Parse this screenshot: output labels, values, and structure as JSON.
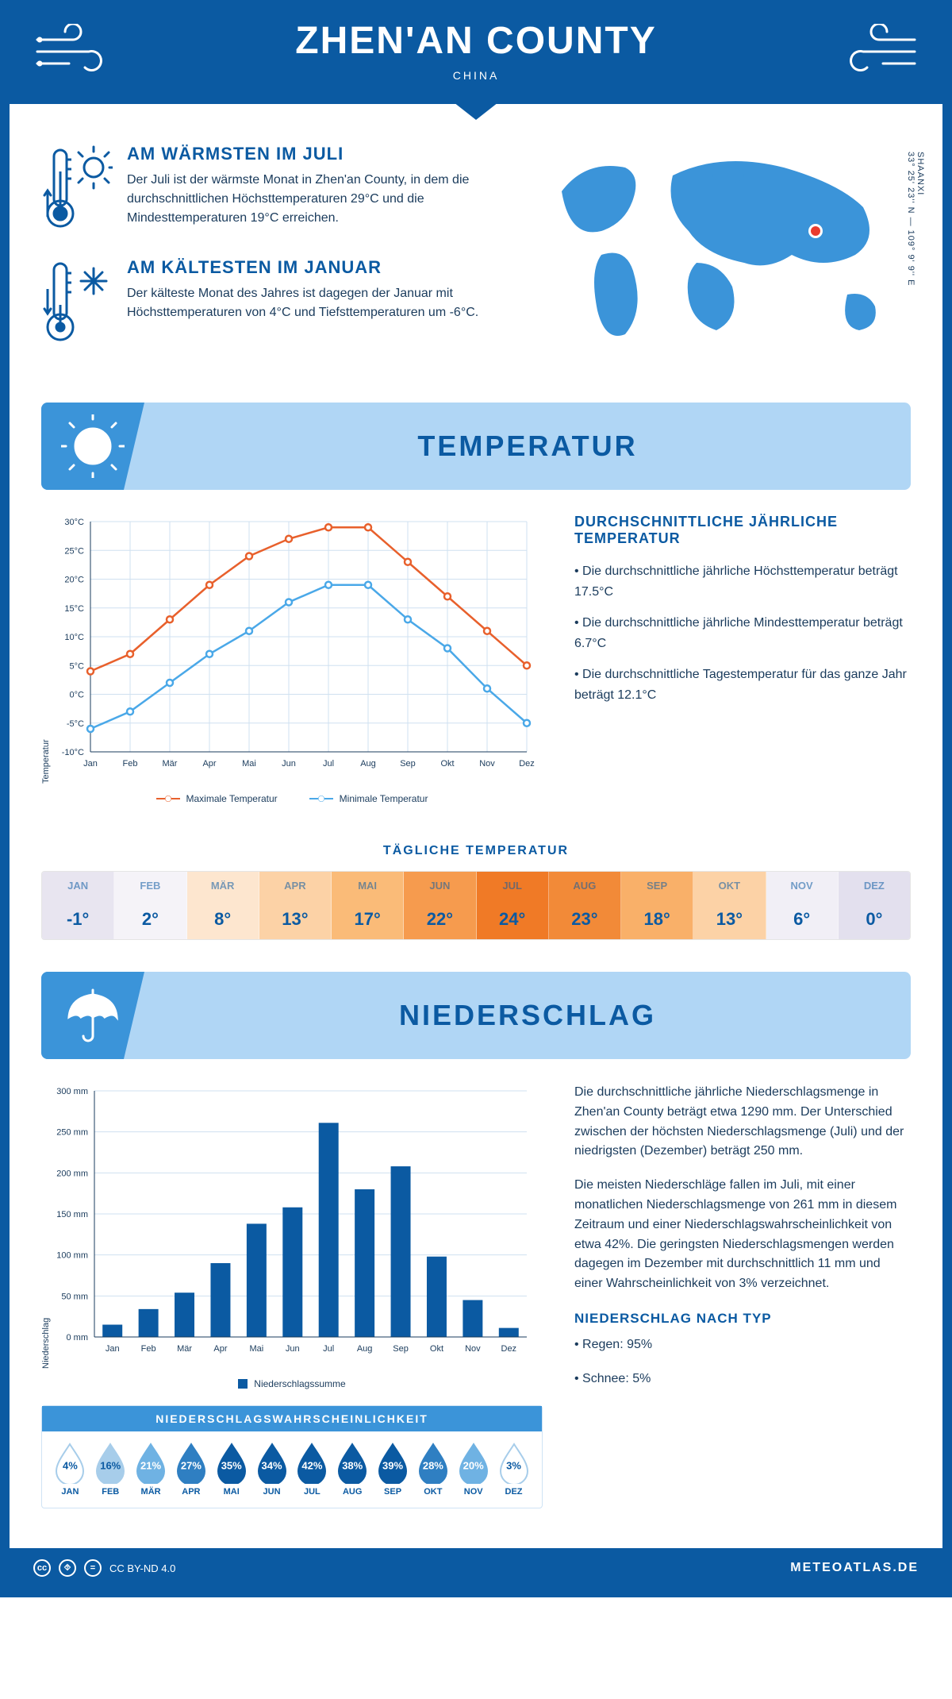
{
  "header": {
    "title": "ZHEN'AN COUNTY",
    "subtitle": "CHINA"
  },
  "coords": "33° 25' 23'' N — 109° 9' 9'' E",
  "region_label": "SHAANXI",
  "warm": {
    "title": "AM WÄRMSTEN IM JULI",
    "text": "Der Juli ist der wärmste Monat in Zhen'an County, in dem die durchschnittlichen Höchsttemperaturen 29°C und die Mindesttemperaturen 19°C erreichen."
  },
  "cold": {
    "title": "AM KÄLTESTEN IM JANUAR",
    "text": "Der kälteste Monat des Jahres ist dagegen der Januar mit Höchsttemperaturen von 4°C und Tiefsttemperaturen um -6°C."
  },
  "sections": {
    "temperature": "TEMPERATUR",
    "precipitation": "NIEDERSCHLAG"
  },
  "months": [
    "Jan",
    "Feb",
    "Mär",
    "Apr",
    "Mai",
    "Jun",
    "Jul",
    "Aug",
    "Sep",
    "Okt",
    "Nov",
    "Dez"
  ],
  "months_upper": [
    "JAN",
    "FEB",
    "MÄR",
    "APR",
    "MAI",
    "JUN",
    "JUL",
    "AUG",
    "SEP",
    "OKT",
    "NOV",
    "DEZ"
  ],
  "temp_chart": {
    "ylabel": "Temperatur",
    "y_min": -10,
    "y_max": 30,
    "y_step": 5,
    "max_series": {
      "label": "Maximale Temperatur",
      "color": "#e8602c",
      "values": [
        4,
        7,
        13,
        19,
        24,
        27,
        29,
        29,
        23,
        17,
        11,
        5
      ]
    },
    "min_series": {
      "label": "Minimale Temperatur",
      "color": "#4aa8e8",
      "values": [
        -6,
        -3,
        2,
        7,
        11,
        16,
        19,
        19,
        13,
        8,
        1,
        -5
      ]
    },
    "grid_color": "#cfe0f0",
    "axis_color": "#1a3b5c"
  },
  "temp_text": {
    "heading": "DURCHSCHNITTLICHE JÄHRLICHE TEMPERATUR",
    "bullets": [
      "• Die durchschnittliche jährliche Höchsttemperatur beträgt 17.5°C",
      "• Die durchschnittliche jährliche Mindesttemperatur beträgt 6.7°C",
      "• Die durchschnittliche Tagestemperatur für das ganze Jahr beträgt 12.1°C"
    ]
  },
  "daily": {
    "title": "TÄGLICHE TEMPERATUR",
    "values": [
      "-1°",
      "2°",
      "8°",
      "13°",
      "17°",
      "22°",
      "24°",
      "23°",
      "18°",
      "13°",
      "6°",
      "0°"
    ],
    "colors": [
      "#e8e5f0",
      "#f5f3f8",
      "#fde6cf",
      "#fcd2a6",
      "#fabb78",
      "#f69b4e",
      "#f07a26",
      "#f28a38",
      "#f9b069",
      "#fcd2a6",
      "#f1eff6",
      "#e3e0ee"
    ]
  },
  "precip_chart": {
    "ylabel": "Niederschlag",
    "legend": "Niederschlagssumme",
    "y_min": 0,
    "y_max": 300,
    "y_step": 50,
    "values": [
      15,
      34,
      54,
      90,
      138,
      158,
      261,
      180,
      208,
      98,
      45,
      11
    ],
    "bar_color": "#0b5aa2",
    "grid_color": "#cfe0f0"
  },
  "precip_text": {
    "p1": "Die durchschnittliche jährliche Niederschlagsmenge in Zhen'an County beträgt etwa 1290 mm. Der Unterschied zwischen der höchsten Niederschlagsmenge (Juli) und der niedrigsten (Dezember) beträgt 250 mm.",
    "p2": "Die meisten Niederschläge fallen im Juli, mit einer monatlichen Niederschlagsmenge von 261 mm in diesem Zeitraum und einer Niederschlagswahrscheinlichkeit von etwa 42%. Die geringsten Niederschlagsmengen werden dagegen im Dezember mit durchschnittlich 11 mm und einer Wahrscheinlichkeit von 3% verzeichnet.",
    "type_heading": "NIEDERSCHLAG NACH TYP",
    "type_rain": "• Regen: 95%",
    "type_snow": "• Schnee: 5%"
  },
  "probability": {
    "title": "NIEDERSCHLAGSWAHRSCHEINLICHKEIT",
    "values": [
      4,
      16,
      21,
      27,
      35,
      34,
      42,
      38,
      39,
      28,
      20,
      3
    ]
  },
  "footer": {
    "license": "CC BY-ND 4.0",
    "brand": "METEOATLAS.DE"
  }
}
